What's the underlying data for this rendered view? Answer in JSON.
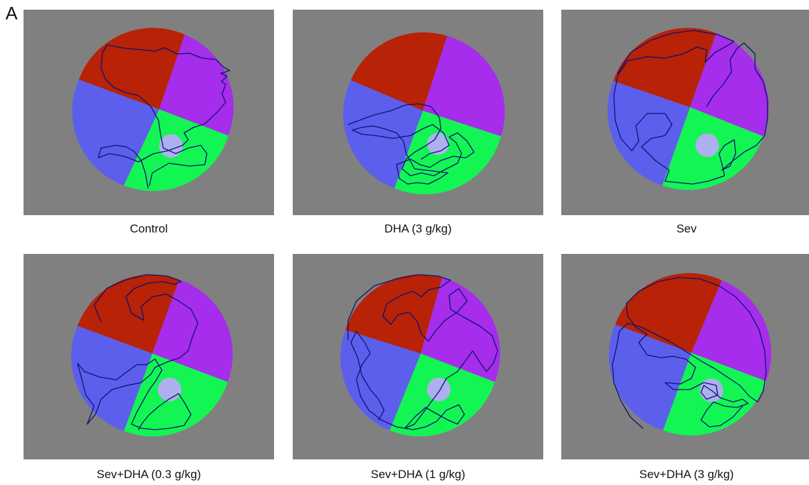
{
  "figure": {
    "panel_label": "A",
    "colors": {
      "background": "#808080",
      "quadrant_top": "#B82206",
      "quadrant_right": "#A52DEB",
      "quadrant_bottom": "#13F553",
      "quadrant_left": "#5C5FEC",
      "platform": "#ADB0EF",
      "path": "#0C1272"
    },
    "trials": [
      {
        "caption": "Control"
      },
      {
        "caption": "DHA (3 g/kg)"
      },
      {
        "caption": "Sev"
      },
      {
        "caption": "Sev+DHA (0.3 g/kg)"
      },
      {
        "caption": "Sev+DHA (1 g/kg)"
      },
      {
        "caption": "Sev+DHA (3 g/kg)"
      }
    ]
  }
}
